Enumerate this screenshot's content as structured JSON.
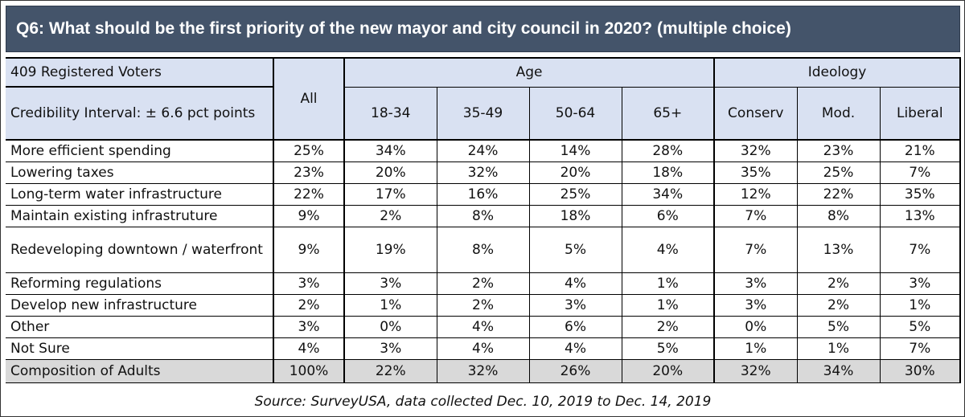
{
  "title": "Q6: What should be the first priority of the new mayor and city council in 2020? (multiple choice)",
  "source": "Source: SurveyUSA, data collected Dec. 10, 2019 to Dec. 14, 2019",
  "header": {
    "sample": "409 Registered Voters",
    "credibility": "Credibility Interval: ± 6.6 pct points",
    "all": "All",
    "age_group": "Age",
    "ideology_group": "Ideology",
    "columns": [
      "18-34",
      "35-49",
      "50-64",
      "65+",
      "Conserv",
      "Mod.",
      "Liberal"
    ]
  },
  "chart_data": {
    "type": "table",
    "title": "Q6: What should be the first priority of the new mayor and city council in 2020? (multiple choice)",
    "columns": [
      "All",
      "18-34",
      "35-49",
      "50-64",
      "65+",
      "Conserv",
      "Mod.",
      "Liberal"
    ],
    "column_groups": [
      {
        "name": "Age",
        "columns": [
          "18-34",
          "35-49",
          "50-64",
          "65+"
        ]
      },
      {
        "name": "Ideology",
        "columns": [
          "Conserv",
          "Mod.",
          "Liberal"
        ]
      }
    ],
    "rows": [
      {
        "label": "More efficient spending",
        "values": [
          "25%",
          "34%",
          "24%",
          "14%",
          "28%",
          "32%",
          "23%",
          "21%"
        ]
      },
      {
        "label": "Lowering taxes",
        "values": [
          "23%",
          "20%",
          "32%",
          "20%",
          "18%",
          "35%",
          "25%",
          "7%"
        ]
      },
      {
        "label": "Long-term water infrastructure",
        "values": [
          "22%",
          "17%",
          "16%",
          "25%",
          "34%",
          "12%",
          "22%",
          "35%"
        ]
      },
      {
        "label": "Maintain existing infrastruture",
        "values": [
          "9%",
          "2%",
          "8%",
          "18%",
          "6%",
          "7%",
          "8%",
          "13%"
        ]
      },
      {
        "label": "Redeveloping downtown / waterfront",
        "values": [
          "9%",
          "19%",
          "8%",
          "5%",
          "4%",
          "7%",
          "13%",
          "7%"
        ]
      },
      {
        "label": "Reforming regulations",
        "values": [
          "3%",
          "3%",
          "2%",
          "4%",
          "1%",
          "3%",
          "2%",
          "3%"
        ]
      },
      {
        "label": "Develop new infrastructure",
        "values": [
          "2%",
          "1%",
          "2%",
          "3%",
          "1%",
          "3%",
          "2%",
          "1%"
        ]
      },
      {
        "label": "Other",
        "values": [
          "3%",
          "0%",
          "4%",
          "6%",
          "2%",
          "0%",
          "5%",
          "5%"
        ]
      },
      {
        "label": "Not Sure",
        "values": [
          "4%",
          "3%",
          "4%",
          "4%",
          "5%",
          "1%",
          "1%",
          "7%"
        ]
      }
    ],
    "total_row": {
      "label": "Composition of Adults",
      "values": [
        "100%",
        "22%",
        "32%",
        "26%",
        "20%",
        "32%",
        "34%",
        "30%"
      ]
    }
  },
  "colors": {
    "title_bg": "#44546a",
    "header_bg": "#d9e1f2",
    "total_bg": "#d9d9d9"
  }
}
